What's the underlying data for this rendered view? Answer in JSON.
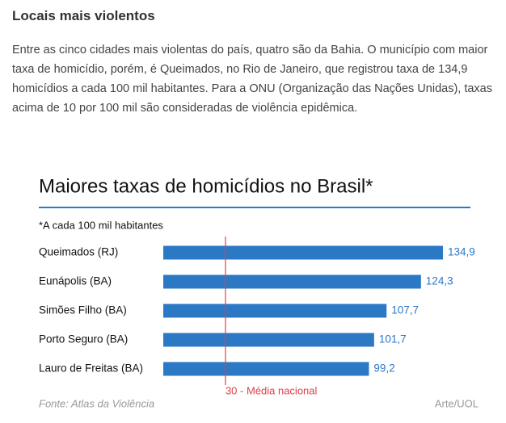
{
  "article": {
    "title": "Locais mais violentos",
    "text": "Entre as cinco cidades mais violentas do país, quatro são da Bahia. O município com maior taxa de homicídio, porém, é Queimados, no Rio de Janeiro, que registrou taxa de 134,9 homicídios a cada 100 mil habitantes. Para a ONU (Organização das Nações Unidas), taxas acima de 10 por 100 mil são consideradas de violência epidêmica."
  },
  "chart_data": {
    "type": "bar",
    "orientation": "horizontal",
    "title": "Maiores taxas de homicídios no Brasil*",
    "subtitle": "*A cada 100 mil habitantes",
    "categories": [
      "Queimados (RJ)",
      "Eunápolis (BA)",
      "Simões Filho (BA)",
      "Porto Seguro (BA)",
      "Lauro de Freitas (BA)"
    ],
    "values": [
      134.9,
      124.3,
      107.7,
      101.7,
      99.2
    ],
    "value_labels": [
      "134,9",
      "124,3",
      "107,7",
      "101,7",
      "99,2"
    ],
    "color": "#2b78c5",
    "reference_line": {
      "value": 30,
      "label": "30 - Média nacional",
      "color": "#e0404a"
    },
    "source": "Fonte: Atlas da Violência",
    "credit": "Arte/UOL"
  }
}
